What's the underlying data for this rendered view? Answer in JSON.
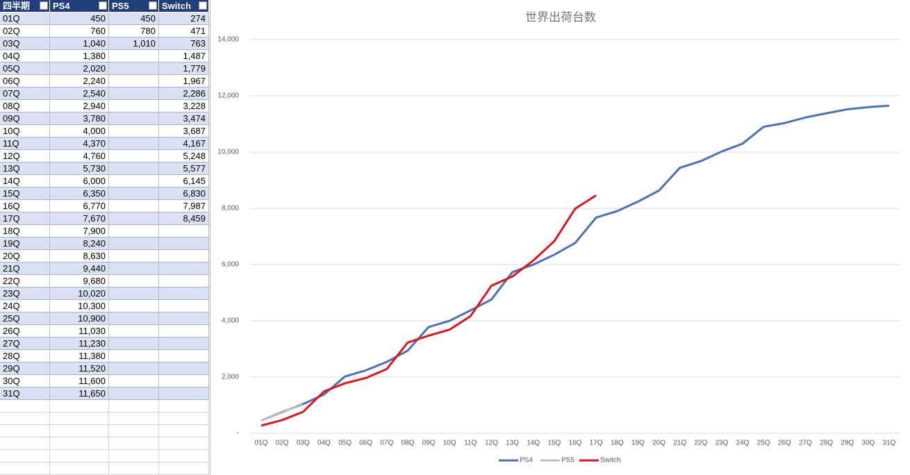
{
  "table": {
    "header": [
      "四半期",
      "PS4",
      "PS5",
      "Switch"
    ],
    "rows": [
      [
        "01Q",
        "450",
        "450",
        "274"
      ],
      [
        "02Q",
        "760",
        "780",
        "471"
      ],
      [
        "03Q",
        "1,040",
        "1,010",
        "763"
      ],
      [
        "04Q",
        "1,380",
        null,
        "1,487"
      ],
      [
        "05Q",
        "2,020",
        null,
        "1,779"
      ],
      [
        "06Q",
        "2,240",
        null,
        "1,967"
      ],
      [
        "07Q",
        "2,540",
        null,
        "2,286"
      ],
      [
        "08Q",
        "2,940",
        null,
        "3,228"
      ],
      [
        "09Q",
        "3,780",
        null,
        "3,474"
      ],
      [
        "10Q",
        "4,000",
        null,
        "3,687"
      ],
      [
        "11Q",
        "4,370",
        null,
        "4,167"
      ],
      [
        "12Q",
        "4,760",
        null,
        "5,248"
      ],
      [
        "13Q",
        "5,730",
        null,
        "5,577"
      ],
      [
        "14Q",
        "6,000",
        null,
        "6,145"
      ],
      [
        "15Q",
        "6,350",
        null,
        "6,830"
      ],
      [
        "16Q",
        "6,770",
        null,
        "7,987"
      ],
      [
        "17Q",
        "7,670",
        null,
        "8,459"
      ],
      [
        "18Q",
        "7,900",
        null,
        null
      ],
      [
        "19Q",
        "8,240",
        null,
        null
      ],
      [
        "20Q",
        "8,630",
        null,
        null
      ],
      [
        "21Q",
        "9,440",
        null,
        null
      ],
      [
        "22Q",
        "9,680",
        null,
        null
      ],
      [
        "23Q",
        "10,020",
        null,
        null
      ],
      [
        "24Q",
        "10,300",
        null,
        null
      ],
      [
        "25Q",
        "10,900",
        null,
        null
      ],
      [
        "26Q",
        "11,030",
        null,
        null
      ],
      [
        "27Q",
        "11,230",
        null,
        null
      ],
      [
        "28Q",
        "11,380",
        null,
        null
      ],
      [
        "29Q",
        "11,520",
        null,
        null
      ],
      [
        "30Q",
        "11,600",
        null,
        null
      ],
      [
        "31Q",
        "11,650",
        null,
        null
      ]
    ]
  },
  "chart_data": {
    "type": "line",
    "title": "世界出荷台数",
    "categories": [
      "01Q",
      "02Q",
      "03Q",
      "04Q",
      "05Q",
      "06Q",
      "07Q",
      "08Q",
      "09Q",
      "10Q",
      "11Q",
      "12Q",
      "13Q",
      "14Q",
      "15Q",
      "16Q",
      "17Q",
      "18Q",
      "19Q",
      "20Q",
      "21Q",
      "22Q",
      "23Q",
      "24Q",
      "25Q",
      "26Q",
      "27Q",
      "28Q",
      "29Q",
      "30Q",
      "31Q"
    ],
    "series": [
      {
        "name": "PS4",
        "color": "#4a72b0",
        "values": [
          450,
          760,
          1040,
          1380,
          2020,
          2240,
          2540,
          2940,
          3780,
          4000,
          4370,
          4760,
          5730,
          6000,
          6350,
          6770,
          7670,
          7900,
          8240,
          8630,
          9440,
          9680,
          10020,
          10300,
          10900,
          11030,
          11230,
          11380,
          11520,
          11600,
          11650
        ]
      },
      {
        "name": "PS5",
        "color": "#bfbfbf",
        "values": [
          450,
          780,
          1010,
          null,
          null,
          null,
          null,
          null,
          null,
          null,
          null,
          null,
          null,
          null,
          null,
          null,
          null,
          null,
          null,
          null,
          null,
          null,
          null,
          null,
          null,
          null,
          null,
          null,
          null,
          null,
          null
        ]
      },
      {
        "name": "Switch",
        "color": "#e0141e",
        "values": [
          274,
          471,
          763,
          1487,
          1779,
          1967,
          2286,
          3228,
          3474,
          3687,
          4167,
          5248,
          5577,
          6145,
          6830,
          7987,
          8459,
          null,
          null,
          null,
          null,
          null,
          null,
          null,
          null,
          null,
          null,
          null,
          null,
          null,
          null
        ]
      }
    ],
    "ylim": [
      0,
      14000
    ],
    "yticks": [
      {
        "value": 0,
        "label": "-"
      },
      {
        "value": 2000,
        "label": "2,000"
      },
      {
        "value": 4000,
        "label": "4,000"
      },
      {
        "value": 6000,
        "label": "6,000"
      },
      {
        "value": 8000,
        "label": "8,000"
      },
      {
        "value": 10000,
        "label": "10,000"
      },
      {
        "value": 12000,
        "label": "12,000"
      },
      {
        "value": 14000,
        "label": "14,000"
      }
    ],
    "grid": true,
    "legend": "bottom"
  }
}
